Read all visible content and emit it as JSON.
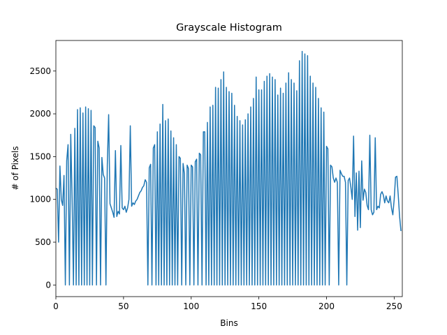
{
  "chart_data": {
    "type": "line",
    "title": "Grayscale Histogram",
    "x_label": "Bins",
    "y_label": "# of Pixels",
    "x": [
      0,
      1,
      2,
      3,
      4,
      5,
      6,
      7,
      8,
      9,
      10,
      11,
      12,
      13,
      14,
      15,
      16,
      17,
      18,
      19,
      20,
      21,
      22,
      23,
      24,
      25,
      26,
      27,
      28,
      29,
      30,
      31,
      32,
      33,
      34,
      35,
      36,
      37,
      38,
      39,
      40,
      41,
      42,
      43,
      44,
      45,
      46,
      47,
      48,
      49,
      50,
      51,
      52,
      53,
      54,
      55,
      56,
      57,
      58,
      59,
      60,
      61,
      62,
      63,
      64,
      65,
      66,
      67,
      68,
      69,
      70,
      71,
      72,
      73,
      74,
      75,
      76,
      77,
      78,
      79,
      80,
      81,
      82,
      83,
      84,
      85,
      86,
      87,
      88,
      89,
      90,
      91,
      92,
      93,
      94,
      95,
      96,
      97,
      98,
      99,
      100,
      101,
      102,
      103,
      104,
      105,
      106,
      107,
      108,
      109,
      110,
      111,
      112,
      113,
      114,
      115,
      116,
      117,
      118,
      119,
      120,
      121,
      122,
      123,
      124,
      125,
      126,
      127,
      128,
      129,
      130,
      131,
      132,
      133,
      134,
      135,
      136,
      137,
      138,
      139,
      140,
      141,
      142,
      143,
      144,
      145,
      146,
      147,
      148,
      149,
      150,
      151,
      152,
      153,
      154,
      155,
      156,
      157,
      158,
      159,
      160,
      161,
      162,
      163,
      164,
      165,
      166,
      167,
      168,
      169,
      170,
      171,
      172,
      173,
      174,
      175,
      176,
      177,
      178,
      179,
      180,
      181,
      182,
      183,
      184,
      185,
      186,
      187,
      188,
      189,
      190,
      191,
      192,
      193,
      194,
      195,
      196,
      197,
      198,
      199,
      200,
      201,
      202,
      203,
      204,
      205,
      206,
      207,
      208,
      209,
      210,
      211,
      212,
      213,
      214,
      215,
      216,
      217,
      218,
      219,
      220,
      221,
      222,
      223,
      224,
      225,
      226,
      227,
      228,
      229,
      230,
      231,
      232,
      233,
      234,
      235,
      236,
      237,
      238,
      239,
      240,
      241,
      242,
      243,
      244,
      245,
      246,
      247,
      248,
      249,
      250,
      251,
      252,
      253,
      254,
      255
    ],
    "series": [
      {
        "color": "#1f77b4",
        "values": [
          1130,
          1120,
          500,
          1390,
          1000,
          930,
          1280,
          0,
          1450,
          1640,
          0,
          1760,
          1000,
          0,
          1830,
          0,
          2050,
          0,
          2070,
          0,
          2010,
          0,
          2080,
          0,
          2060,
          0,
          2040,
          0,
          1860,
          1840,
          0,
          1680,
          1600,
          0,
          1490,
          1290,
          1250,
          0,
          1400,
          1990,
          950,
          900,
          850,
          790,
          1570,
          800,
          860,
          830,
          1630,
          900,
          880,
          920,
          850,
          900,
          1000,
          1860,
          920,
          960,
          940,
          980,
          1000,
          1040,
          1080,
          1100,
          1140,
          1160,
          1230,
          1200,
          0,
          1370,
          1410,
          0,
          1600,
          1640,
          0,
          1790,
          0,
          1880,
          0,
          2110,
          0,
          1920,
          0,
          1940,
          0,
          1800,
          0,
          1720,
          0,
          1640,
          0,
          1500,
          1480,
          0,
          1420,
          1300,
          0,
          1400,
          1360,
          0,
          1400,
          1380,
          0,
          1440,
          1470,
          0,
          1540,
          1520,
          0,
          1790,
          1790,
          0,
          1900,
          0,
          2080,
          0,
          2100,
          0,
          2310,
          0,
          2300,
          0,
          2400,
          0,
          2490,
          0,
          2310,
          0,
          2260,
          0,
          2240,
          0,
          2100,
          0,
          1970,
          0,
          1920,
          0,
          1870,
          0,
          1930,
          0,
          2000,
          0,
          2080,
          0,
          2180,
          0,
          2430,
          0,
          2280,
          0,
          2280,
          0,
          2380,
          0,
          2440,
          0,
          2470,
          0,
          2430,
          0,
          2400,
          0,
          2220,
          0,
          2300,
          0,
          2240,
          0,
          2360,
          0,
          2480,
          0,
          2400,
          0,
          2360,
          0,
          2270,
          0,
          2620,
          0,
          2730,
          0,
          2700,
          0,
          2680,
          0,
          2440,
          0,
          2360,
          0,
          2310,
          0,
          2180,
          0,
          2070,
          0,
          2020,
          0,
          1620,
          1590,
          0,
          1400,
          1380,
          1250,
          1200,
          1250,
          1200,
          0,
          1340,
          1300,
          1270,
          1270,
          1200,
          0,
          1220,
          1250,
          1140,
          1000,
          1740,
          800,
          1310,
          640,
          1330,
          670,
          1450,
          990,
          1120,
          1080,
          930,
          880,
          1750,
          880,
          820,
          850,
          1720,
          880,
          920,
          900,
          1060,
          1090,
          1050,
          960,
          1040,
          980,
          960,
          1040,
          900,
          820,
          1000,
          1260,
          1270,
          1050,
          800,
          630
        ]
      }
    ],
    "xlim": [
      0,
      256
    ],
    "xticks": [
      0,
      50,
      100,
      150,
      200,
      250
    ],
    "ylim": [
      -136,
      2857
    ],
    "yticks": [
      0,
      500,
      1000,
      1500,
      2000,
      2500
    ]
  }
}
